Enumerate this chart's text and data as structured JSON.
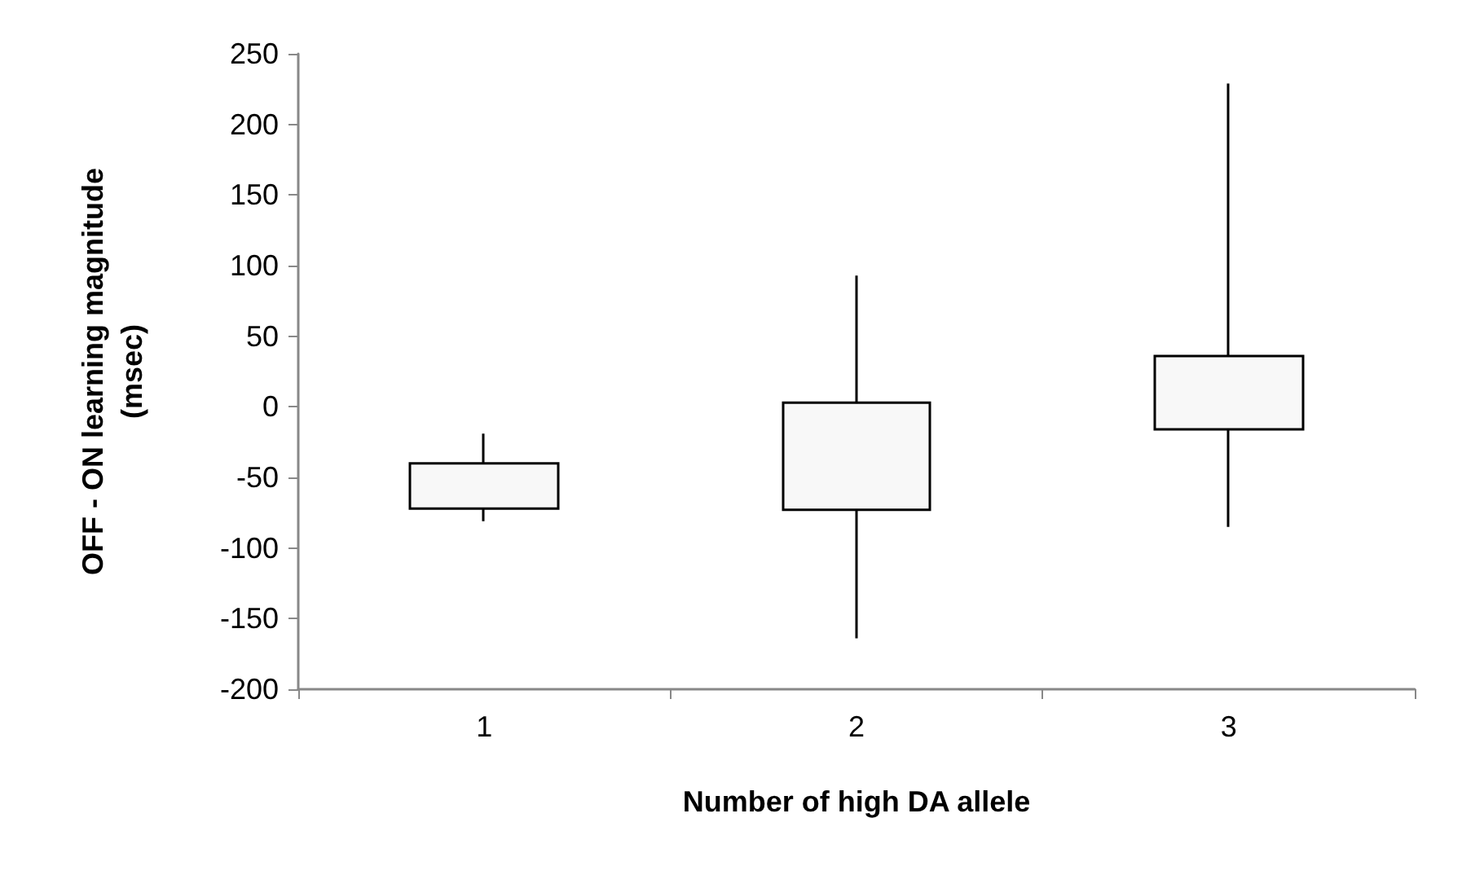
{
  "chart_data": {
    "type": "candlestick",
    "xlabel": "Number of high DA allele",
    "ylabel": "OFF - ON learning magnitude\n(msec)",
    "categories": [
      "1",
      "2",
      "3"
    ],
    "ohlc": [
      [
        -72,
        -19,
        -81,
        -40
      ],
      [
        -73,
        93,
        -164,
        3
      ],
      [
        -16,
        229,
        -85,
        36
      ]
    ],
    "color": "#f8f8f8",
    "ylim": [
      -200,
      250
    ],
    "yticks": [
      -200,
      -150,
      -100,
      -50,
      0,
      50,
      100,
      150,
      200,
      250
    ],
    "grid": false
  }
}
